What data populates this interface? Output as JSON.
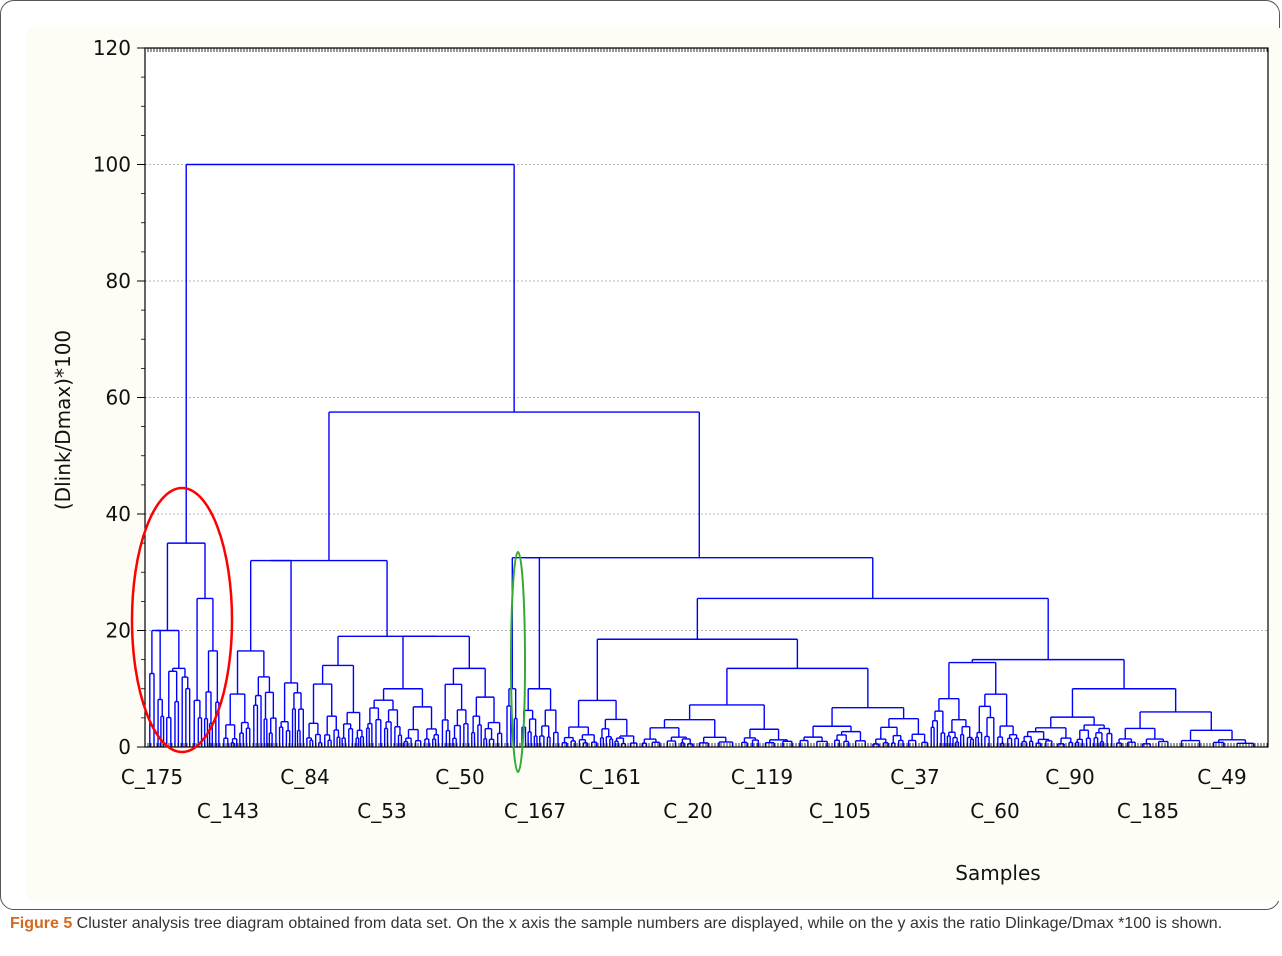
{
  "caption": {
    "label": "Figure 5",
    "text": " Cluster analysis tree diagram obtained from data set. On the x axis the sample numbers are displayed, while on the y axis the ratio Dlinkage/Dmax *100 is shown."
  },
  "chart_data": {
    "type": "dendrogram",
    "xlabel": "Samples",
    "ylabel": "(Dlink/Dmax)*100",
    "ylim": [
      0,
      120
    ],
    "yticks": [
      0,
      20,
      40,
      60,
      80,
      100,
      120
    ],
    "grid": true,
    "xticklabels_row1": [
      "C_175",
      "C_84",
      "C_50",
      "C_161",
      "C_119",
      "C_37",
      "C_90",
      "C_49"
    ],
    "xticklabels_row2": [
      "C_143",
      "C_53",
      "C_167",
      "C_20",
      "C_105",
      "C_60",
      "C_185"
    ],
    "link_color": "#0000ff",
    "highlights": [
      {
        "color": "#ff0000",
        "description": "red ellipse around leftmost cluster"
      },
      {
        "color": "#33aa33",
        "description": "green ellipse around single separated sample"
      }
    ],
    "major_merges": [
      {
        "height": 100,
        "joins": [
          "left-cluster",
          "main-cluster"
        ]
      },
      {
        "height": 57.5,
        "joins": [
          "cluster-A",
          "cluster-B"
        ]
      },
      {
        "height": 35,
        "joins": [
          "left-sub-1",
          "left-sub-2"
        ]
      },
      {
        "height": 32.5,
        "joins": [
          "cluster-B1",
          "cluster-B2"
        ]
      },
      {
        "height": 32,
        "joins": [
          "cluster-A1",
          "cluster-A2"
        ]
      },
      {
        "height": 25.5,
        "joins": [
          "cluster-B2a",
          "cluster-B2b"
        ]
      },
      {
        "height": 19,
        "joins": [
          "cluster-A2a",
          "cluster-A2b"
        ]
      },
      {
        "height": 18.5,
        "joins": [
          "cluster-B2a1",
          "cluster-B2a2"
        ]
      },
      {
        "height": 15,
        "joins": [
          "cluster-B2b1",
          "cluster-B2b2"
        ]
      }
    ]
  }
}
